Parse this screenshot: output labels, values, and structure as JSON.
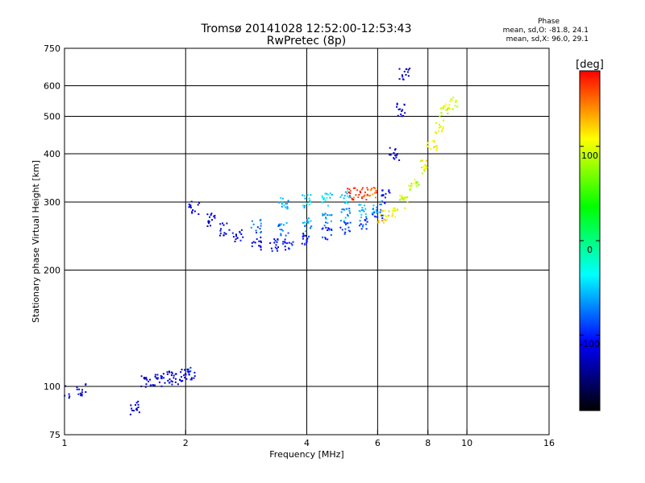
{
  "chart_data": {
    "type": "scatter",
    "title": "Tromsø 20141028 12:52:00-12:53:43",
    "subtitle": "RwPretec (8p)",
    "xlabel": "Frequency [MHz]",
    "ylabel": "Stationary phase Virtual Height [km]",
    "x_scale": "log",
    "y_scale": "log",
    "xlim": [
      1,
      16
    ],
    "ylim": [
      75,
      750
    ],
    "x_ticks": [
      "1",
      "2",
      "4",
      "6",
      "8",
      "10",
      "16"
    ],
    "y_ticks": [
      "75",
      "100",
      "200",
      "300",
      "400",
      "500",
      "600",
      "750"
    ],
    "grid_x": [
      2,
      4,
      6,
      8,
      10
    ],
    "grid_y": [
      100,
      200,
      300,
      400,
      500,
      600
    ],
    "grid": true,
    "phase_stats": {
      "header": "Phase",
      "line_o": "mean, sd,O: -81.8, 24.1",
      "line_x": "mean, sd,X:  96.0, 29.1"
    },
    "colorbar": {
      "label": "[deg]",
      "min": -180,
      "max": 180,
      "ticks": [
        "100",
        "0",
        "-100"
      ],
      "tick_values": [
        100,
        0,
        -100
      ],
      "colors": [
        "#ff0000",
        "#ffff00",
        "#00ff00",
        "#00ffff",
        "#0000ff",
        "#000000"
      ]
    },
    "traces": [
      {
        "name": "",
        "description_points": [
          [
            1.0,
            97,
            -110
          ],
          [
            1.1,
            98,
            -110
          ],
          [
            1.5,
            88,
            -120
          ],
          [
            1.6,
            103,
            -115
          ],
          [
            1.7,
            104,
            -110
          ],
          [
            1.8,
            106,
            -112
          ],
          [
            1.9,
            105,
            -108
          ],
          [
            2.0,
            107,
            -110
          ],
          [
            2.05,
            108,
            -100
          ]
        ]
      },
      {
        "name": "",
        "description_points": [
          [
            2.1,
            290,
            -110
          ],
          [
            2.3,
            270,
            -115
          ],
          [
            2.5,
            255,
            -110
          ],
          [
            2.7,
            245,
            -105
          ],
          [
            3.0,
            235,
            -110
          ],
          [
            3.3,
            232,
            -105
          ],
          [
            3.6,
            235,
            -100
          ],
          [
            4.0,
            240,
            -95
          ],
          [
            4.5,
            250,
            -90
          ],
          [
            5.0,
            258,
            -85
          ],
          [
            5.5,
            265,
            -80
          ],
          [
            6.0,
            280,
            -80
          ],
          [
            6.3,
            310,
            -100
          ],
          [
            6.6,
            400,
            -110
          ],
          [
            6.9,
            520,
            -115
          ],
          [
            7.0,
            640,
            -120
          ]
        ]
      },
      {
        "name": "",
        "description_points": [
          [
            3.0,
            260,
            -70
          ],
          [
            3.5,
            255,
            -60
          ],
          [
            4.0,
            262,
            -50
          ],
          [
            4.5,
            270,
            -55
          ],
          [
            5.0,
            278,
            -50
          ],
          [
            5.5,
            285,
            -45
          ],
          [
            6.0,
            292,
            -50
          ],
          [
            3.5,
            300,
            -40
          ],
          [
            4.0,
            302,
            -35
          ],
          [
            4.5,
            305,
            -30
          ],
          [
            5.0,
            308,
            -30
          ]
        ]
      },
      {
        "name": "",
        "description_points": [
          [
            5.2,
            315,
            160
          ],
          [
            5.5,
            317,
            165
          ],
          [
            5.8,
            318,
            150
          ]
        ]
      },
      {
        "name": "",
        "description_points": [
          [
            6.2,
            275,
            110
          ],
          [
            6.6,
            285,
            100
          ],
          [
            7.0,
            300,
            90
          ],
          [
            7.4,
            330,
            80
          ],
          [
            7.8,
            370,
            100
          ],
          [
            8.2,
            420,
            110
          ],
          [
            8.5,
            470,
            95
          ],
          [
            8.8,
            520,
            90
          ],
          [
            9.2,
            540,
            85
          ]
        ]
      }
    ]
  }
}
